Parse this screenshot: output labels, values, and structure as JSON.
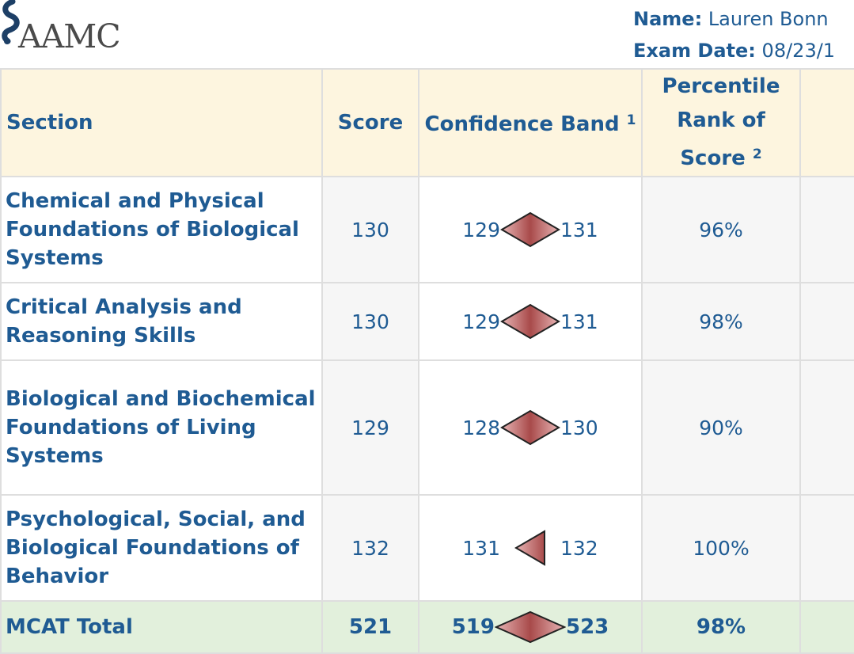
{
  "logo": {
    "text": "AAMC"
  },
  "candidate": {
    "name_label": "Name:",
    "name_value": "Lauren Bonn",
    "date_label": "Exam Date:",
    "date_value": "08/23/1"
  },
  "table": {
    "headers": {
      "section": "Section",
      "score": "Score",
      "band": "Confidence Band",
      "band_note": "1",
      "percentile": "Percentile Rank of Score",
      "percentile_note": "2"
    },
    "rows": [
      {
        "section": "Chemical and Physical Foundations of Biological Systems",
        "score": "130",
        "band_low": "129",
        "band_high": "131",
        "percentile": "96%"
      },
      {
        "section": "Critical Analysis and Reasoning Skills",
        "score": "130",
        "band_low": "129",
        "band_high": "131",
        "percentile": "98%"
      },
      {
        "section": "Biological and Biochemical Foundations of Living Systems",
        "score": "129",
        "band_low": "128",
        "band_high": "130",
        "percentile": "90%"
      },
      {
        "section": "Psychological, Social, and Biological Foundations of Behavior",
        "score": "132",
        "band_low": "131",
        "band_high": "132",
        "percentile": "100%"
      }
    ],
    "total": {
      "section": "MCAT Total",
      "score": "521",
      "band_low": "519",
      "band_high": "523",
      "percentile": "98%"
    }
  },
  "colors": {
    "link_blue": "#1f5b93",
    "header_bg": "#fdf5df",
    "total_bg": "#e2f0dc",
    "band_marker": "#b85c5c"
  }
}
